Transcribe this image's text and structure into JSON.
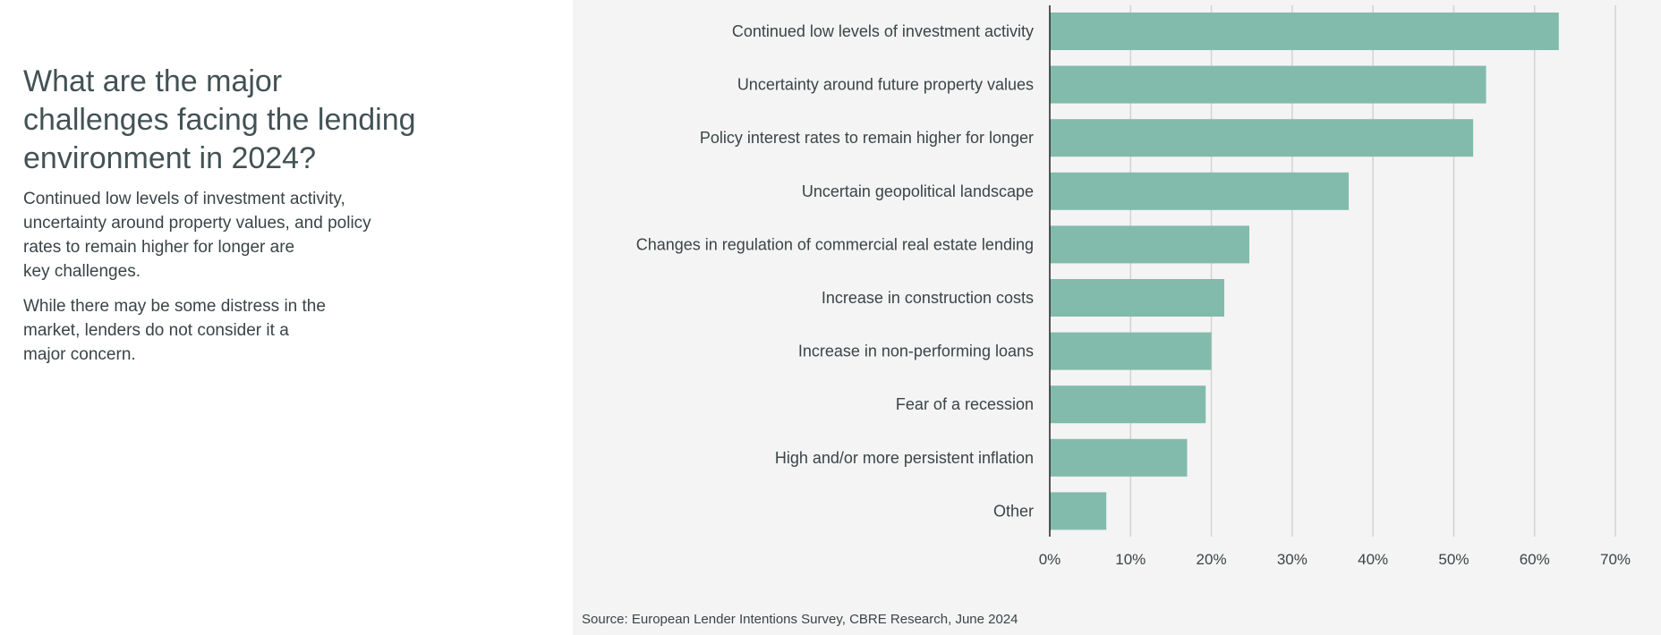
{
  "title": "What are the major challenges facing the lending environment in 2024?",
  "paragraphs": [
    "Continued low levels of investment activity,\nuncertainty around property values, and policy\nrates to remain higher for longer are\nkey challenges.",
    "While there may be some distress in the\nmarket, lenders do not consider it a\nmajor concern."
  ],
  "source": "Source: European Lender Intentions Survey, CBRE Research, June 2024",
  "colors": {
    "bar": "#82bbac",
    "grid": "#d3d3d3",
    "axis": "#222222",
    "panel": "#f4f4f4"
  },
  "chart_data": {
    "type": "bar",
    "orientation": "horizontal",
    "categories": [
      "Continued low levels of investment activity",
      "Uncertainty around future property values",
      "Policy interest rates to remain higher for longer",
      "Uncertain geopolitical landscape",
      "Changes in regulation of commercial real estate lending",
      "Increase in construction costs",
      "Increase in non-performing loans",
      "Fear of a recession",
      "High and/or more persistent inflation",
      "Other"
    ],
    "values": [
      63,
      54,
      52.4,
      37,
      24.7,
      21.6,
      20,
      19.3,
      17,
      7
    ],
    "xlim": [
      0,
      70
    ],
    "xticks": [
      0,
      10,
      20,
      30,
      40,
      50,
      60,
      70
    ],
    "tick_labels": [
      "0%",
      "10%",
      "20%",
      "30%",
      "40%",
      "50%",
      "60%",
      "70%"
    ],
    "grid": true
  }
}
